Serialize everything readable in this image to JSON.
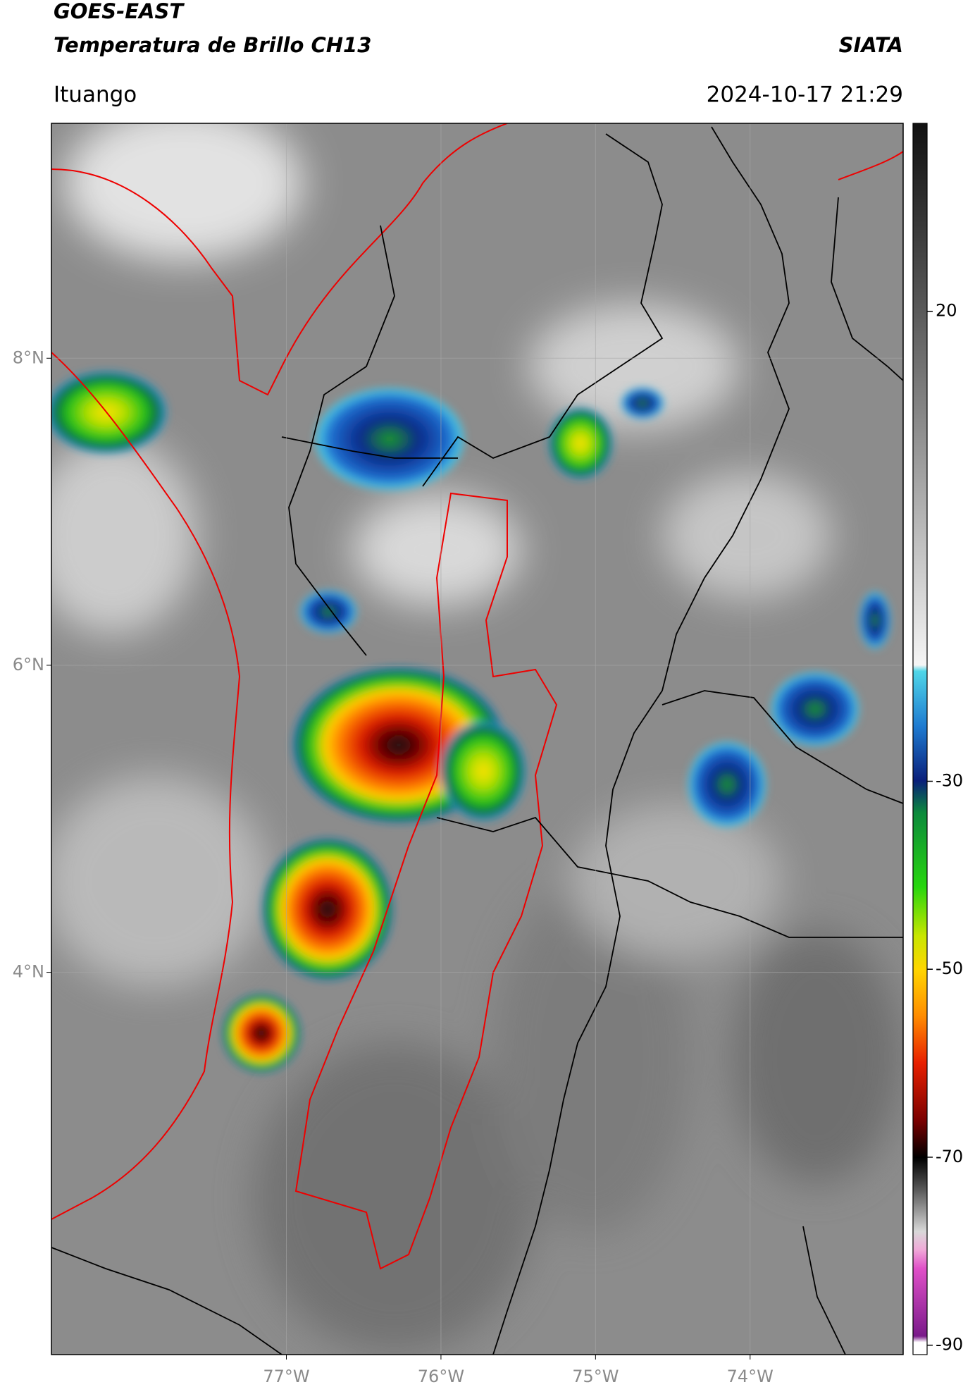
{
  "title": "GOES-EAST",
  "subtitle": "Temperatura de Brillo CH13",
  "source": "SIATA",
  "location": "Ituango",
  "timestamp": "2024-10-17 21:29",
  "map": {
    "xlim": [
      -78.52,
      -73.01
    ],
    "ylim": [
      1.51,
      9.53
    ],
    "xticks": [
      {
        "value": -77,
        "label": "77°W"
      },
      {
        "value": -76,
        "label": "76°W"
      },
      {
        "value": -75,
        "label": "75°W"
      },
      {
        "value": -74,
        "label": "74°W"
      }
    ],
    "yticks": [
      {
        "value": 8,
        "label": "8°N"
      },
      {
        "value": 6,
        "label": "6°N"
      },
      {
        "value": 4,
        "label": "4°N"
      }
    ],
    "grid": true
  },
  "colorbar": {
    "lim": [
      -91,
      40
    ],
    "ticks": [
      20,
      -30,
      -50,
      -70,
      -90
    ]
  }
}
